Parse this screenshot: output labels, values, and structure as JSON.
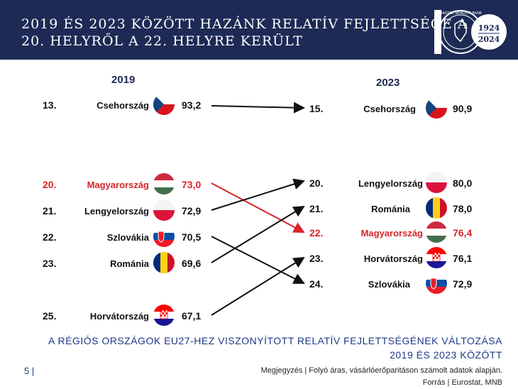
{
  "header": {
    "title_line1": "2019 ÉS 2023 KÖZÖTT HAZÁNK RELATÍV FEJLETTSÉGE A",
    "title_line2": "20. HELYRŐL A 22. HELYRE KERÜLT",
    "logo": {
      "text_top": "1924",
      "text_bottom": "2024",
      "ring_text": "MAGYAR NEMZETI BANK"
    }
  },
  "left": {
    "year": "2019",
    "rows": [
      {
        "rank": "13.",
        "country": "Csehország",
        "value": "93,2",
        "flag": "czech-flag",
        "highlight": false
      },
      {
        "rank": "20.",
        "country": "Magyarország",
        "value": "73,0",
        "flag": "hungary-flag",
        "highlight": true
      },
      {
        "rank": "21.",
        "country": "Lengyelország",
        "value": "72,9",
        "flag": "poland-flag",
        "highlight": false
      },
      {
        "rank": "22.",
        "country": "Szlovákia",
        "value": "70,5",
        "flag": "slovakia-flag",
        "highlight": false
      },
      {
        "rank": "23.",
        "country": "Románia",
        "value": "69,6",
        "flag": "romania-flag",
        "highlight": false
      },
      {
        "rank": "25.",
        "country": "Horvátország",
        "value": "67,1",
        "flag": "croatia-flag",
        "highlight": false
      }
    ]
  },
  "right": {
    "year": "2023",
    "rows": [
      {
        "rank": "15.",
        "country": "Csehország",
        "value": "90,9",
        "flag": "czech-flag",
        "highlight": false
      },
      {
        "rank": "20.",
        "country": "Lengyelország",
        "value": "80,0",
        "flag": "poland-flag",
        "highlight": false
      },
      {
        "rank": "21.",
        "country": "Románia",
        "value": "78,0",
        "flag": "romania-flag",
        "highlight": false
      },
      {
        "rank": "22.",
        "country": "Magyarország",
        "value": "76,4",
        "flag": "hungary-flag",
        "highlight": true
      },
      {
        "rank": "23.",
        "country": "Horvátország",
        "value": "76,1",
        "flag": "croatia-flag",
        "highlight": false
      },
      {
        "rank": "24.",
        "country": "Szlovákia",
        "value": "72,9",
        "flag": "slovakia-flag",
        "highlight": false
      }
    ]
  },
  "colors": {
    "navy": "#1d2a55",
    "highlight": "#d7232a",
    "caption": "#1d3a8a"
  },
  "caption": {
    "line1": "A RÉGIÓS ORSZÁGOK EU27-HEZ VISZONYÍTOTT RELATÍV FEJLETTSÉGÉNEK VÁLTOZÁSA",
    "line2": "2019 ÉS 2023 KÖZÖTT"
  },
  "footer": {
    "page_number": "5 |",
    "note": "Megjegyzés | Folyó áras, vásárlóerőparitáson számolt adatok alapján.",
    "source": "Forrás | Eurostat, MNB"
  }
}
